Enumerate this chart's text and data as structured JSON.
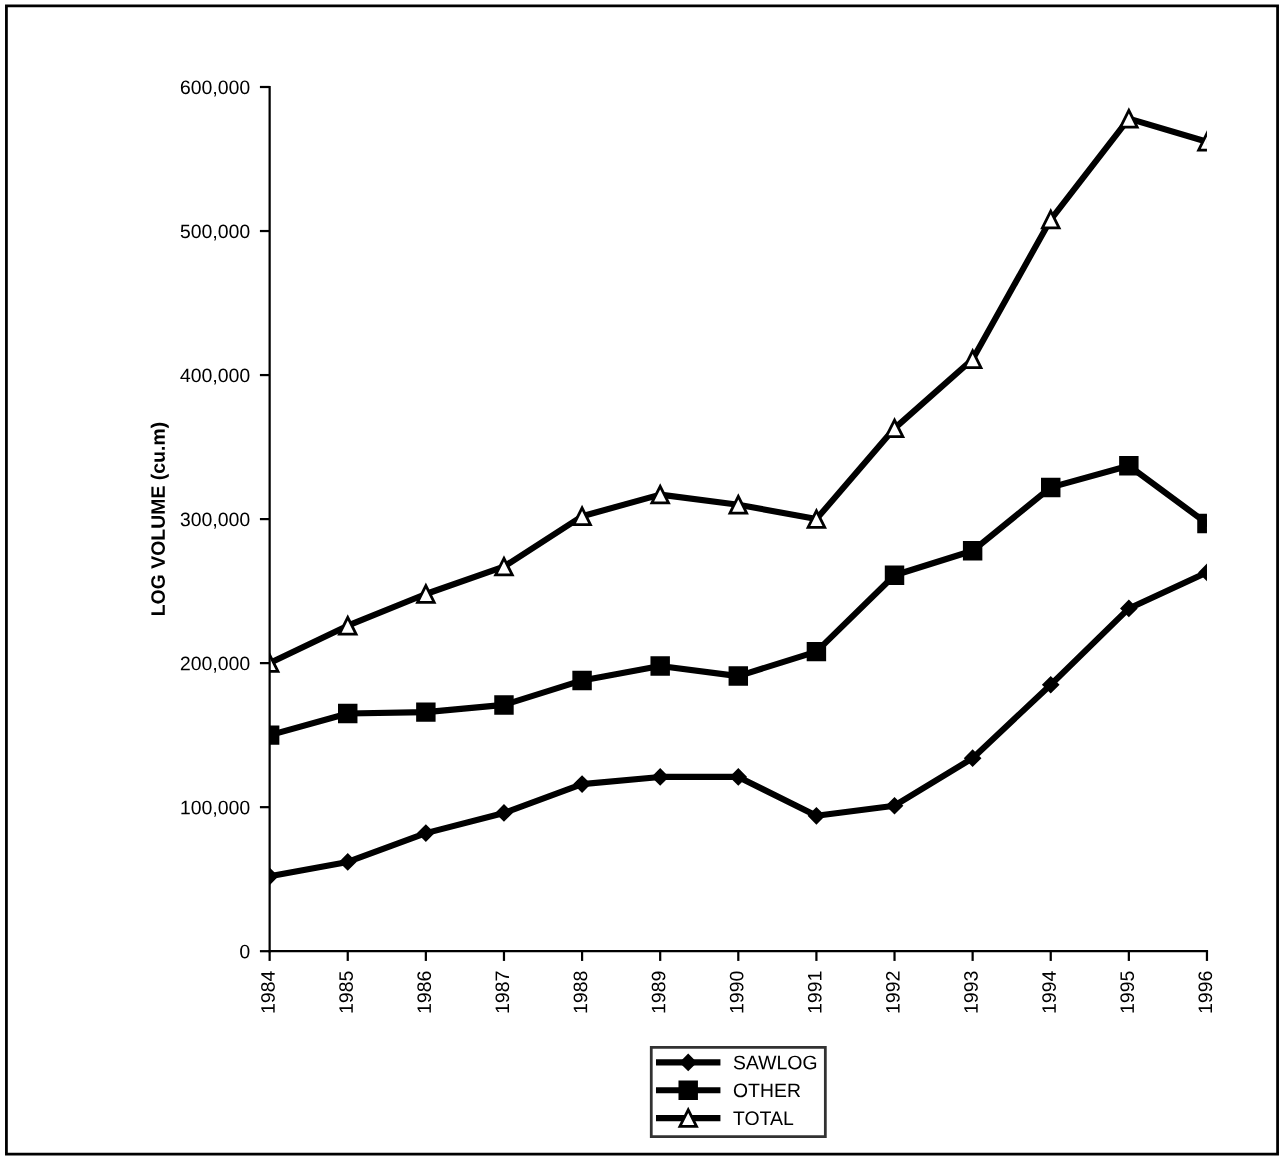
{
  "chart_data": {
    "type": "line",
    "ylabel": "LOG VOLUME (cu.m)",
    "categories": [
      "1984",
      "1985",
      "1986",
      "1987",
      "1988",
      "1989",
      "1990",
      "1991",
      "1992",
      "1993",
      "1994",
      "1995",
      "1996"
    ],
    "series": [
      {
        "name": "SAWLOG",
        "color": "#000000",
        "marker": "diamond",
        "values": [
          52000,
          62000,
          82000,
          96000,
          116000,
          121000,
          121000,
          94000,
          101000,
          134000,
          185000,
          238000,
          263000
        ]
      },
      {
        "name": "OTHER",
        "color": "#000000",
        "marker": "square",
        "values": [
          150000,
          165000,
          166000,
          171000,
          188000,
          198000,
          191000,
          208000,
          261000,
          278000,
          322000,
          337000,
          297000
        ]
      },
      {
        "name": "TOTAL",
        "color": "#000000",
        "marker": "triangle",
        "values": [
          200000,
          226000,
          248000,
          267000,
          302000,
          317000,
          310000,
          300000,
          363000,
          411000,
          508000,
          578000,
          562000
        ]
      }
    ],
    "ylim": [
      0,
      600000
    ],
    "yticks": [
      0,
      {
        "value": 100000,
        "label": "100,000"
      },
      {
        "value": 200000,
        "label": "200,000"
      },
      {
        "value": 300000,
        "label": "300,000"
      },
      {
        "value": 400000,
        "label": "400,000"
      },
      {
        "value": 500000,
        "label": "500,000"
      },
      {
        "value": 600000,
        "label": "600,000"
      }
    ],
    "grid": false,
    "legend": "bottom",
    "line_style": "solid"
  }
}
